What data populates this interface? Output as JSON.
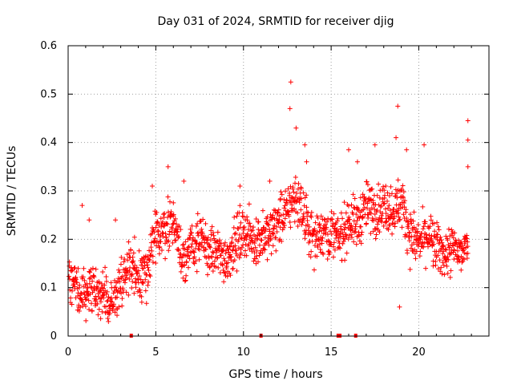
{
  "chart_data": {
    "type": "scatter",
    "title": "Day 031 of 2024, SRMTID for receiver djig",
    "xlabel": "GPS time / hours",
    "ylabel": "SRMTID / TECUs",
    "xlim": [
      0,
      24
    ],
    "ylim": [
      0,
      0.6
    ],
    "xticks": [
      0,
      5,
      10,
      15,
      20
    ],
    "xtick_labels": [
      "0",
      "5",
      "10",
      "15",
      "20"
    ],
    "yticks": [
      0,
      0.1,
      0.2,
      0.3,
      0.4,
      0.5,
      0.6
    ],
    "ytick_labels": [
      "0",
      "0.1",
      "0.2",
      "0.3",
      "0.4",
      "0.5",
      "0.6"
    ],
    "grid": true,
    "marker": "plus",
    "color": "#ff0000",
    "trend": {
      "x": [
        0,
        0.5,
        1,
        1.5,
        2,
        2.5,
        3,
        3.5,
        4,
        4.5,
        5,
        5.5,
        6,
        6.5,
        7,
        7.5,
        8,
        8.5,
        9,
        9.5,
        10,
        10.5,
        11,
        11.5,
        12,
        12.5,
        13,
        13.5,
        14,
        14.5,
        15,
        15.5,
        16,
        16.5,
        17,
        17.5,
        18,
        18.5,
        19,
        19.5,
        20,
        20.5,
        21,
        21.5,
        22,
        22.5,
        22.8
      ],
      "y": [
        0.13,
        0.1,
        0.09,
        0.1,
        0.08,
        0.06,
        0.11,
        0.15,
        0.13,
        0.14,
        0.2,
        0.22,
        0.24,
        0.16,
        0.18,
        0.2,
        0.18,
        0.17,
        0.16,
        0.19,
        0.22,
        0.2,
        0.2,
        0.21,
        0.24,
        0.26,
        0.29,
        0.24,
        0.2,
        0.22,
        0.21,
        0.2,
        0.24,
        0.23,
        0.27,
        0.26,
        0.27,
        0.26,
        0.28,
        0.21,
        0.19,
        0.21,
        0.18,
        0.17,
        0.18,
        0.17,
        0.19
      ]
    },
    "spread": 0.05,
    "n_points": 1500,
    "peaks": [
      {
        "x": 0.8,
        "y": 0.27
      },
      {
        "x": 1.2,
        "y": 0.24
      },
      {
        "x": 2.7,
        "y": 0.24
      },
      {
        "x": 4.8,
        "y": 0.31
      },
      {
        "x": 5.7,
        "y": 0.35
      },
      {
        "x": 6.6,
        "y": 0.32
      },
      {
        "x": 9.8,
        "y": 0.31
      },
      {
        "x": 11.5,
        "y": 0.32
      },
      {
        "x": 12.7,
        "y": 0.525
      },
      {
        "x": 12.65,
        "y": 0.47
      },
      {
        "x": 13.0,
        "y": 0.43
      },
      {
        "x": 13.5,
        "y": 0.395
      },
      {
        "x": 13.6,
        "y": 0.36
      },
      {
        "x": 16.0,
        "y": 0.385
      },
      {
        "x": 16.5,
        "y": 0.36
      },
      {
        "x": 17.5,
        "y": 0.395
      },
      {
        "x": 18.8,
        "y": 0.475
      },
      {
        "x": 18.7,
        "y": 0.41
      },
      {
        "x": 19.3,
        "y": 0.385
      },
      {
        "x": 20.3,
        "y": 0.395
      },
      {
        "x": 22.8,
        "y": 0.445
      },
      {
        "x": 22.8,
        "y": 0.405
      },
      {
        "x": 22.8,
        "y": 0.35
      },
      {
        "x": 18.9,
        "y": 0.06
      },
      {
        "x": 2.3,
        "y": 0.03
      },
      {
        "x": 4.2,
        "y": 0.07
      }
    ],
    "zero_marks_x": [
      3.6,
      11.0,
      15.4,
      15.5,
      16.4
    ]
  }
}
